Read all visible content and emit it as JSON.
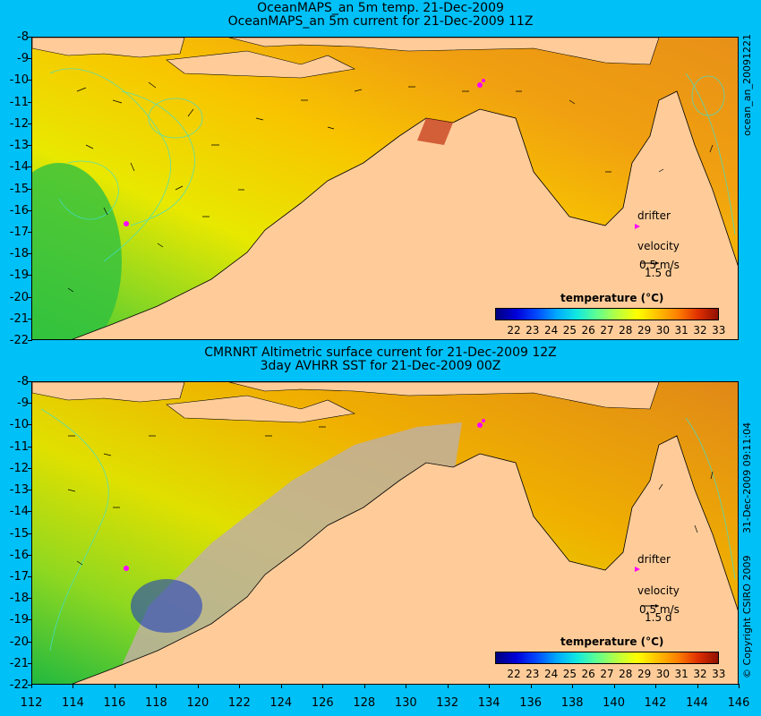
{
  "top_panel": {
    "title_line1": "OceanMAPS_an 5m temp. 21-Dec-2009",
    "title_line2": "OceanMAPS_an 5m current for 21-Dec-2009 11Z",
    "side_label": "ocean_an_20091221",
    "legend": {
      "drifter": "drifter",
      "velocity": "velocity",
      "speed": "0.5 m/s",
      "duration": "1.5 d"
    },
    "colorbar_title": "temperature (°C)"
  },
  "bottom_panel": {
    "title_line1": "CMRNRT Altimetric surface current for 21-Dec-2009 12Z",
    "title_line2": "3day AVHRR SST for 21-Dec-2009 00Z",
    "side_label": "31-Dec-2009 09:11:04",
    "copyright": "© Copyright CSIRO 2009",
    "legend": {
      "drifter": "drifter",
      "velocity": "velocity",
      "speed": "0.5 m/s",
      "duration": "1.5 d"
    },
    "colorbar_title": "temperature (°C)"
  },
  "colorbar_ticks": [
    "22",
    "23",
    "24",
    "25",
    "26",
    "27",
    "28",
    "29",
    "30",
    "31",
    "32",
    "33"
  ],
  "y_ticks": [
    "-8",
    "-9",
    "-10",
    "-11",
    "-12",
    "-13",
    "-14",
    "-15",
    "-16",
    "-17",
    "-18",
    "-19",
    "-20",
    "-21",
    "-22"
  ],
  "x_ticks": [
    "112",
    "114",
    "116",
    "118",
    "120",
    "122",
    "124",
    "126",
    "128",
    "130",
    "132",
    "134",
    "136",
    "138",
    "140",
    "142",
    "144",
    "146"
  ],
  "colors": {
    "background": "#00c0f8",
    "land": "#ffcc99",
    "drifter": "#ff00ff",
    "contour": "#40e0d0"
  }
}
